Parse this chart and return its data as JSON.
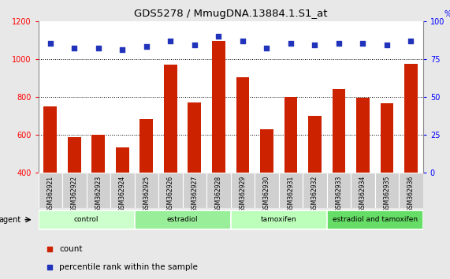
{
  "title": "GDS5278 / MmugDNA.13884.1.S1_at",
  "samples": [
    "GSM362921",
    "GSM362922",
    "GSM362923",
    "GSM362924",
    "GSM362925",
    "GSM362926",
    "GSM362927",
    "GSM362928",
    "GSM362929",
    "GSM362930",
    "GSM362931",
    "GSM362932",
    "GSM362933",
    "GSM362934",
    "GSM362935",
    "GSM362936"
  ],
  "bar_values": [
    750,
    590,
    600,
    535,
    685,
    970,
    770,
    1095,
    905,
    630,
    800,
    700,
    840,
    795,
    765,
    975
  ],
  "scatter_values": [
    85,
    82,
    82,
    81,
    83,
    87,
    84,
    90,
    87,
    82,
    85,
    84,
    85,
    85,
    84,
    87
  ],
  "groups": [
    {
      "label": "control",
      "start": 0,
      "end": 4,
      "color": "#ccffcc"
    },
    {
      "label": "estradiol",
      "start": 4,
      "end": 8,
      "color": "#99ee99"
    },
    {
      "label": "tamoxifen",
      "start": 8,
      "end": 12,
      "color": "#bbffbb"
    },
    {
      "label": "estradiol and tamoxifen",
      "start": 12,
      "end": 16,
      "color": "#66dd66"
    }
  ],
  "bar_color": "#cc2200",
  "scatter_color": "#2233bb",
  "ylim_left": [
    400,
    1200
  ],
  "ylim_right": [
    0,
    100
  ],
  "yticks_left": [
    400,
    600,
    800,
    1000,
    1200
  ],
  "yticks_right": [
    0,
    25,
    50,
    75,
    100
  ],
  "background_color": "#e8e8e8",
  "plot_bg": "#ffffff",
  "legend_count_label": "count",
  "legend_pct_label": "percentile rank within the sample",
  "agent_label": "agent",
  "title_fontsize": 9.5,
  "tick_fontsize": 7,
  "label_fontsize": 8
}
